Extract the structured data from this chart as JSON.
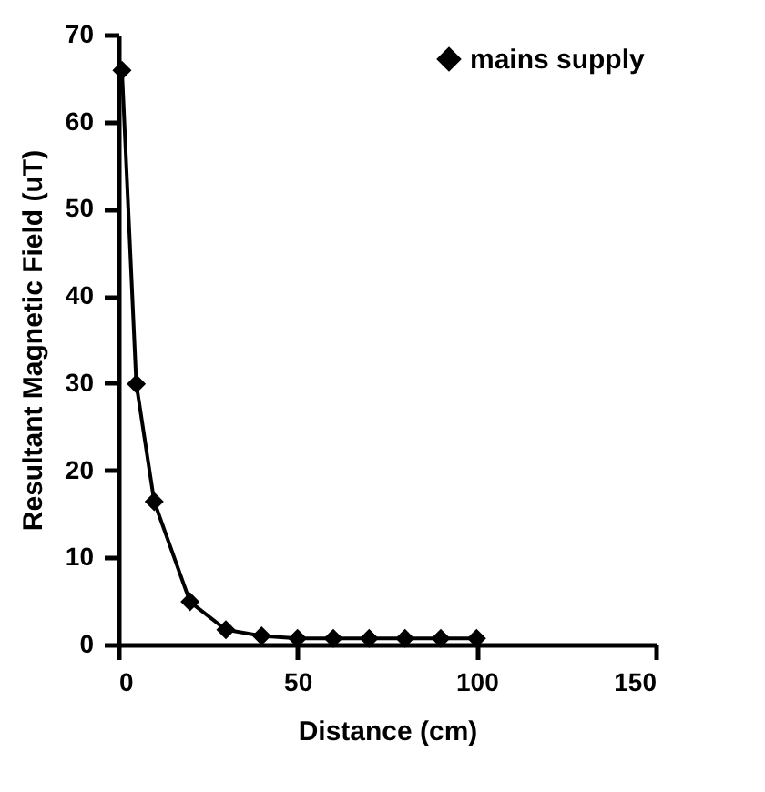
{
  "chart_data": {
    "type": "line",
    "xlabel": "Distance (cm)",
    "ylabel": "Resultant Magnetic Field (uT)",
    "x": [
      1,
      5,
      10,
      20,
      30,
      40,
      50,
      60,
      70,
      80,
      90,
      100
    ],
    "series": [
      {
        "name": "mains supply",
        "color": "#000000",
        "values": [
          65.9,
          29.9,
          16.4,
          4.9,
          1.7,
          1.0,
          0.7,
          0.7,
          0.7,
          0.7,
          0.7,
          0.7
        ]
      }
    ],
    "xlim": [
      0,
      150
    ],
    "xticks": [
      0,
      50,
      100,
      150
    ],
    "ylim": [
      0,
      70
    ],
    "yticks": [
      0,
      10,
      20,
      30,
      40,
      50,
      60,
      70
    ],
    "grid": false,
    "legend": "top right",
    "marker": "diamond",
    "line_style": "solid"
  }
}
